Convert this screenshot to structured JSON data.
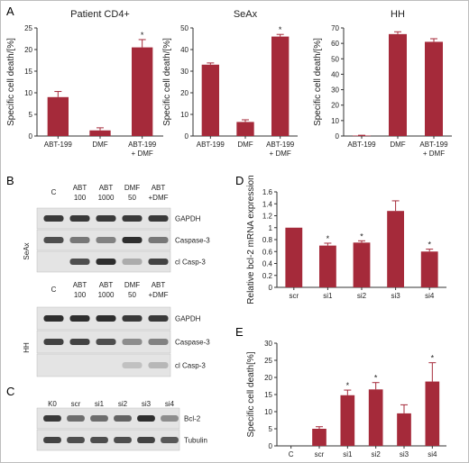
{
  "figure": {
    "panel_a_letter": "A",
    "panel_b_letter": "B",
    "panel_c_letter": "C",
    "panel_d_letter": "D",
    "panel_e_letter": "E",
    "bar_color": "#a52a3a"
  },
  "chart_data": [
    {
      "id": "A1",
      "type": "bar",
      "title": "Patient CD4+",
      "ylabel": "Specific cell death/[%]",
      "categories": [
        [
          "ABT-199"
        ],
        [
          "DMF"
        ],
        [
          "ABT-199",
          "+ DMF"
        ]
      ],
      "values": [
        9,
        1.3,
        20.5
      ],
      "errors": [
        1.3,
        0.6,
        1.8
      ],
      "significance": [
        "",
        "",
        "*"
      ],
      "ylim": [
        0,
        25
      ],
      "yticks": [
        0,
        5,
        10,
        15,
        20,
        25
      ]
    },
    {
      "id": "A2",
      "type": "bar",
      "title": "SeAx",
      "ylabel": "Specific cell death/[%]",
      "categories": [
        [
          "ABT-199"
        ],
        [
          "DMF"
        ],
        [
          "ABT-199",
          "+ DMF"
        ]
      ],
      "values": [
        33,
        6.5,
        46
      ],
      "errors": [
        0.8,
        1.0,
        1.0
      ],
      "significance": [
        "",
        "",
        "*"
      ],
      "ylim": [
        0,
        50
      ],
      "yticks": [
        0,
        10,
        20,
        30,
        40,
        50
      ]
    },
    {
      "id": "A3",
      "type": "bar",
      "title": "HH",
      "ylabel": "Specific cell death/[%]",
      "categories": [
        [
          "ABT-199"
        ],
        [
          "DMF"
        ],
        [
          "ABT-199",
          "+ DMF"
        ]
      ],
      "values": [
        0.3,
        66,
        61
      ],
      "errors": [
        0.2,
        1.5,
        2.0
      ],
      "significance": [
        "",
        "",
        ""
      ],
      "ylim": [
        0,
        70
      ],
      "yticks": [
        0,
        10,
        20,
        30,
        40,
        50,
        60,
        70
      ]
    },
    {
      "id": "D",
      "type": "bar",
      "title": "",
      "ylabel": "Relative bcl-2 mRNA expression",
      "categories": [
        [
          "scr"
        ],
        [
          "si1"
        ],
        [
          "si2"
        ],
        [
          "si3"
        ],
        [
          "si4"
        ]
      ],
      "values": [
        1.0,
        0.7,
        0.75,
        1.28,
        0.6
      ],
      "errors": [
        0.0,
        0.04,
        0.03,
        0.17,
        0.04
      ],
      "significance": [
        "",
        "*",
        "*",
        "",
        "*"
      ],
      "ylim": [
        0,
        1.6
      ],
      "yticks": [
        0,
        0.2,
        0.4,
        0.6,
        0.8,
        1,
        1.2,
        1.4,
        1.6
      ]
    },
    {
      "id": "E",
      "type": "bar",
      "title": "",
      "ylabel": "Specific cell death[%]",
      "categories": [
        [
          "C"
        ],
        [
          "scr"
        ],
        [
          "si1"
        ],
        [
          "si2"
        ],
        [
          "si3"
        ],
        [
          "si4"
        ]
      ],
      "values": [
        0,
        5,
        14.8,
        16.5,
        9.5,
        18.8
      ],
      "errors": [
        0,
        0.6,
        1.5,
        2.0,
        2.5,
        5.5
      ],
      "significance": [
        "",
        "",
        "*",
        "*",
        "",
        "*"
      ],
      "ylim": [
        0,
        30
      ],
      "yticks": [
        0,
        5,
        10,
        15,
        20,
        25,
        30
      ]
    }
  ],
  "blots": {
    "b_seax": {
      "cell_line": "SeAx",
      "lanes": [
        [
          "C"
        ],
        [
          "ABT",
          "100"
        ],
        [
          "ABT",
          "1000"
        ],
        [
          "DMF",
          "50"
        ],
        [
          "ABT",
          "+DMF"
        ]
      ],
      "rows": [
        {
          "label": "GAPDH",
          "intensity": [
            0.85,
            0.85,
            0.85,
            0.85,
            0.85
          ]
        },
        {
          "label": "Caspase-3",
          "intensity": [
            0.75,
            0.55,
            0.5,
            0.9,
            0.55
          ]
        },
        {
          "label": "cl Casp-3",
          "intensity": [
            0.0,
            0.75,
            0.9,
            0.3,
            0.8
          ]
        }
      ]
    },
    "b_hh": {
      "cell_line": "HH",
      "lanes": [
        [
          "C"
        ],
        [
          "ABT",
          "100"
        ],
        [
          "ABT",
          "1000"
        ],
        [
          "DMF",
          "50"
        ],
        [
          "ABT",
          "+DMF"
        ]
      ],
      "rows": [
        {
          "label": "GAPDH",
          "intensity": [
            0.9,
            0.9,
            0.9,
            0.85,
            0.85
          ]
        },
        {
          "label": "Caspase-3",
          "intensity": [
            0.8,
            0.8,
            0.75,
            0.45,
            0.5
          ]
        },
        {
          "label": "cl Casp-3",
          "intensity": [
            0.0,
            0.0,
            0.0,
            0.2,
            0.25
          ]
        }
      ]
    },
    "c_sirna": {
      "cell_line": "",
      "lanes": [
        [
          "K0"
        ],
        [
          "scr"
        ],
        [
          "si1"
        ],
        [
          "si2"
        ],
        [
          "si3"
        ],
        [
          "si4"
        ]
      ],
      "rows": [
        {
          "label": "Bcl-2",
          "intensity": [
            0.85,
            0.6,
            0.6,
            0.65,
            0.9,
            0.45
          ]
        },
        {
          "label": "Tubulin",
          "intensity": [
            0.8,
            0.75,
            0.75,
            0.75,
            0.8,
            0.7
          ]
        }
      ]
    }
  }
}
